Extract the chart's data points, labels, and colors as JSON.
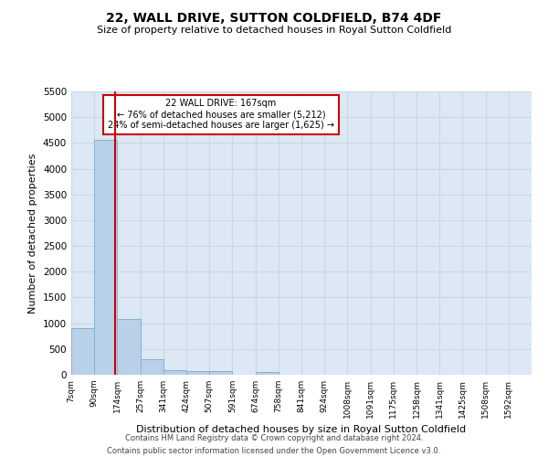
{
  "title": "22, WALL DRIVE, SUTTON COLDFIELD, B74 4DF",
  "subtitle": "Size of property relative to detached houses in Royal Sutton Coldfield",
  "xlabel": "Distribution of detached houses by size in Royal Sutton Coldfield",
  "ylabel": "Number of detached properties",
  "footer_line1": "Contains HM Land Registry data © Crown copyright and database right 2024.",
  "footer_line2": "Contains public sector information licensed under the Open Government Licence v3.0.",
  "property_size": 167,
  "annotation_line1": "22 WALL DRIVE: 167sqm",
  "annotation_line2": "← 76% of detached houses are smaller (5,212)",
  "annotation_line3": "24% of semi-detached houses are larger (1,625) →",
  "bar_edges": [
    7,
    90,
    174,
    257,
    341,
    424,
    507,
    591,
    674,
    758,
    841,
    924,
    1008,
    1091,
    1175,
    1258,
    1341,
    1425,
    1508,
    1592,
    1675
  ],
  "bar_heights": [
    900,
    4560,
    1080,
    300,
    85,
    65,
    65,
    0,
    55,
    0,
    0,
    0,
    0,
    0,
    0,
    0,
    0,
    0,
    0,
    0
  ],
  "bar_color": "#b8d0e8",
  "bar_edge_color": "#8ab0cc",
  "marker_line_color": "#cc0000",
  "grid_color": "#c8d8e8",
  "bg_color": "#dce8f4",
  "ylim": [
    0,
    5500
  ],
  "yticks": [
    0,
    500,
    1000,
    1500,
    2000,
    2500,
    3000,
    3500,
    4000,
    4500,
    5000,
    5500
  ]
}
